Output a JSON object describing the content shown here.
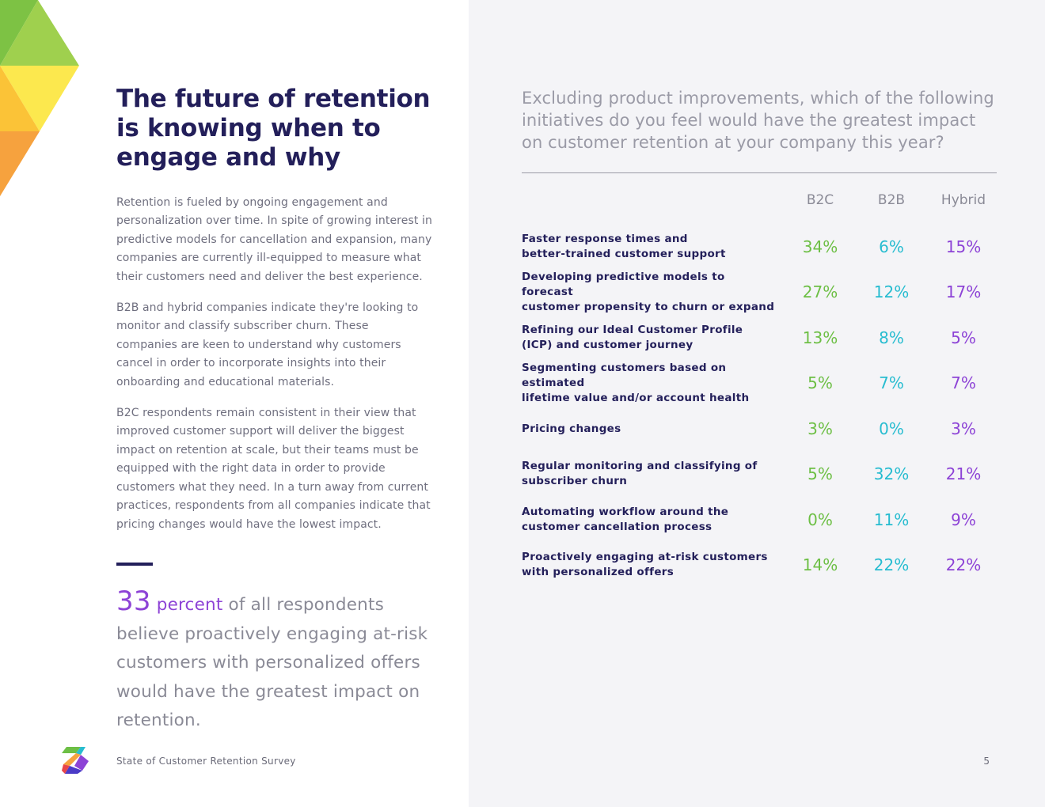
{
  "colors": {
    "navy": "#231f5a",
    "green": "#6dbf45",
    "teal": "#27bcd0",
    "purple": "#8d43d6",
    "grey_text": "#6f6f7f",
    "right_panel_bg": "#f4f4f7"
  },
  "left": {
    "title": "The future of retention is knowing when to engage and why",
    "paragraphs": [
      "Retention is fueled by ongoing engagement and personalization over time. In spite of growing interest in predictive models for cancellation and expansion, many companies are currently ill-equipped to measure what their customers need and deliver the best experience.",
      "B2B and hybrid companies indicate they're looking to monitor and classify subscriber churn. These companies are keen to understand why customers cancel in order to incorporate insights into their onboarding and educational materials.",
      "B2C respondents remain consistent in their view that improved customer support will deliver the biggest impact on retention at scale, but their teams must be equipped with the right data in order to provide customers what they need. In a turn away from current practices, respondents from all companies indicate that pricing changes would have the lowest impact."
    ],
    "callout": {
      "number": "33",
      "unit": "percent",
      "text": "of all respondents believe proactively engaging at-risk customers with personalized offers would have the greatest impact on retention."
    }
  },
  "footer": {
    "logo_icon": "brand-logo-icon",
    "title": "State of Customer Retention Survey",
    "page_number": "5"
  },
  "right": {
    "question": "Excluding product improvements, which of the following initiatives do you feel would have the greatest impact on customer retention at your company this year?",
    "columns": [
      "B2C",
      "B2B",
      "Hybrid"
    ],
    "rows": [
      {
        "label": "Faster response times and\nbetter-trained customer support",
        "b2c": "34%",
        "b2b": "6%",
        "hybrid": "15%"
      },
      {
        "label": "Developing predictive models to forecast\ncustomer propensity to churn or expand",
        "b2c": "27%",
        "b2b": "12%",
        "hybrid": "17%"
      },
      {
        "label": "Refining our Ideal Customer Profile\n(ICP) and customer journey",
        "b2c": "13%",
        "b2b": "8%",
        "hybrid": "5%"
      },
      {
        "label": "Segmenting customers based on estimated\nlifetime value and/or account health",
        "b2c": "5%",
        "b2b": "7%",
        "hybrid": "7%"
      },
      {
        "label": "Pricing changes",
        "b2c": "3%",
        "b2b": "0%",
        "hybrid": "3%"
      },
      {
        "label": "Regular monitoring and classifying of\nsubscriber churn",
        "b2c": "5%",
        "b2b": "32%",
        "hybrid": "21%"
      },
      {
        "label": "Automating workflow around the\ncustomer cancellation process",
        "b2c": "0%",
        "b2b": "11%",
        "hybrid": "9%"
      },
      {
        "label": "Proactively engaging at-risk customers\nwith personalized offers",
        "b2c": "14%",
        "b2b": "22%",
        "hybrid": "22%"
      }
    ]
  }
}
